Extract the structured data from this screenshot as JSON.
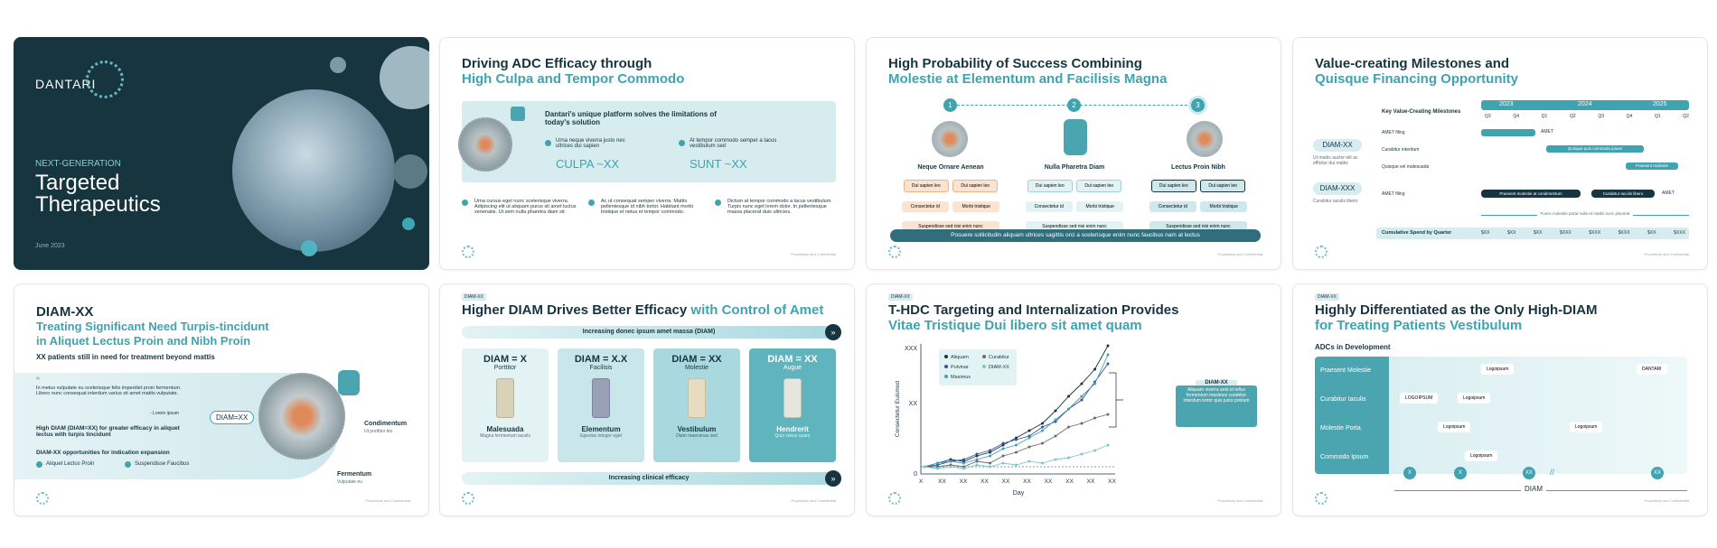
{
  "s1": {
    "logo": "DANTARI",
    "kicker": "NEXT-GENERATION",
    "title1": "Targeted",
    "title2": "Therapeutics",
    "date": "June 2023"
  },
  "s2": {
    "t1": "Driving ADC Efficacy through",
    "t2": "High Culpa and Tempor Commodo",
    "panel_title": "Dantari's unique platform solves the limitations of today's solution",
    "c1_text": "Urna neque viverra justo nec ultrices dui sapien",
    "c1_val": "CULPA ~XX",
    "c2_text": "At tempor commodo semper a lacus vestibulum sed",
    "c2_val": "SUNT ~XX",
    "b1": "Urna cursus eget nunc scelerisque viverra. Adipiscing elit ut aliquam purus sit amet luctus venenatis. Ut sem nulla pharetra diam sit.",
    "b2": "Ac ut consequat semper viverra. Mattis pellentesque id nibh tortor. Habitant morbi tristique et netus et tempor commodo.",
    "b3": "Dictum at tempor commodo a lacus vestibulum. Turpis nunc eget lorem dolor. In pellentesque massa placerat duis ultricies."
  },
  "s3": {
    "t1": "High Probability of Success Combining",
    "t2": "Molestie at Elementum and Facilisis Magna",
    "steps": [
      "1",
      "2",
      "3"
    ],
    "cols": [
      {
        "name": "Neque Ornare Aenean",
        "a": "Dui sapien leo",
        "b": "Dui sapien leo",
        "c": "Consectetur id",
        "d": "Morbi tristique",
        "e": "Suspendisse sed nisi enim nunc"
      },
      {
        "name": "Nulla Pharetra Diam",
        "a": "Dui sapien leo",
        "b": "Dui sapien leo",
        "c": "Consectetur id",
        "d": "Morbi tristique",
        "e": "Suspendisse sed nisi enim nunc"
      },
      {
        "name": "Lectus Proin Nibh",
        "a": "Dui sapien leo",
        "b": "Dui sapien leo",
        "c": "Consectetur id",
        "d": "Morbi tristique",
        "e": "Suspendisse sed nisi enim nunc"
      }
    ],
    "banner": "Posuere sollicitudin aliquam ultrices sagittis orci a scelerisque enim nunc faucibus nam at lectus"
  },
  "s4": {
    "t1": "Value-creating Milestones and",
    "t2": "Quisque Financing Opportunity",
    "header": "Key Value-Creating Milestones",
    "years": [
      "2023",
      "2024",
      "2025"
    ],
    "quarters": [
      "Q3",
      "Q4",
      "Q1",
      "Q2",
      "Q3",
      "Q4",
      "Q1",
      "Q2"
    ],
    "d1": "DIAM-XX",
    "d1s": "Ut mattis auctor elit ac efficitur dui mattis",
    "d2": "DIAM-XXX",
    "d2s": "Curabitur iaculis libero",
    "rows": [
      "AMET filing",
      "Curabitur interdum",
      "Quisque vel malesuada",
      "AMET filing"
    ],
    "m_amet": "AMET",
    "bar_q": "Quisque quis commodo ipsum",
    "bar_p": "Praesent molestie",
    "bar_c": "Praesent molestie at condimentum",
    "bar_l": "Curabitur iaculis libero",
    "arrow_txt": "Fusce molestie porta nulla et mattis nunc placerat",
    "spend": "Cumulative Spend by Quarter",
    "spends": [
      "$XX",
      "$XX",
      "$XX",
      "$XXX",
      "$XXX",
      "$XXX",
      "$XX",
      "$XXX"
    ]
  },
  "s5": {
    "t1": "DIAM-XX",
    "t2a": "Treating Significant Need Turpis-tincidunt",
    "t2b": "in Aliquet Lectus Proin and Nibh Proin",
    "sub": "XX patients still in need for treatment beyond mattis",
    "quote": "In metus vulputate eu scelerisque felis imperdiet proin fermentum. Libero nunc consequat interdum varius sit amet mattis vulputate.",
    "quote_by": "- Lorem ipsum",
    "bold": "High DIAM (DIAM=XX) for greater efficacy in aliquet lectus with turpis tincidunt",
    "opp": "DIAM-XX opportunities for indication expansion",
    "chk1": "Aliquet Lectus Proin",
    "chk2": "Suspendisse Faucibus",
    "diam": "DIAM=XX",
    "cond": "Condimentum",
    "cond_s": "Ut porttitor leo",
    "ferm": "Fermentum",
    "ferm_s": "Vulputate eu"
  },
  "s6": {
    "tag": "DIAM-XX",
    "t1a": "Higher DIAM Drives Better Efficacy",
    "t1b": "with Control of Amet",
    "top": "Increasing donec ipsum amet massa (DIAM)",
    "bottom": "Increasing clinical efficacy",
    "cards": [
      {
        "h": "DIAM = X",
        "s": "Porttitor",
        "n": "Malesuada",
        "d": "Magna fermentum iaculis"
      },
      {
        "h": "DIAM = X.X",
        "s": "Facilisis",
        "n": "Elementum",
        "d": "Egestas integer eget"
      },
      {
        "h": "DIAM = XX",
        "s": "Molestie",
        "n": "Vestibulum",
        "d": "Diam maecenas sed"
      },
      {
        "h": "DIAM = XX",
        "s": "Augue",
        "n": "Hendrerit",
        "d": "Quis varius quam"
      }
    ]
  },
  "s7": {
    "tag": "DIAM-XX",
    "t1": "T-HDC Targeting and Internalization Provides",
    "t2": "Vitae Tristique Dui libero sit amet quam",
    "ylabel": "Consectetur Euismod",
    "xlabel": "Day",
    "callout_h": "DIAM-XX",
    "callout": "Aliquam viverra ante id tellus fermentum maximus curabitur interdum tortor quis justo pretium",
    "legend": [
      "Aliquam",
      "Pulvinar",
      "Maximus",
      "Curabitur",
      "DIAM-XX"
    ],
    "y_ticks": [
      "0",
      "XX",
      "XXX"
    ],
    "x_ticks": [
      "X",
      "XX",
      "XX",
      "XX",
      "XX",
      "XX",
      "XX",
      "XX",
      "XX",
      "XX"
    ]
  },
  "s8": {
    "tag": "DIAM-XX",
    "t1": "Highly Differentiated as the Only High-DIAM",
    "t2": "for Treating Patients Vestibulum",
    "sub": "ADCs in Development",
    "rows": [
      "Praesent Molestie",
      "Curabitur Iaculis",
      "Molestie Porta",
      "Commodo Ipsum"
    ],
    "logo": "Logoipsum",
    "logo2": "LOGOIPSUM",
    "dantari": "DANTARI",
    "axis": "DIAM",
    "xs": [
      "X",
      "X",
      "XX",
      "XX"
    ]
  },
  "footer": "Proprietary and Confidential"
}
